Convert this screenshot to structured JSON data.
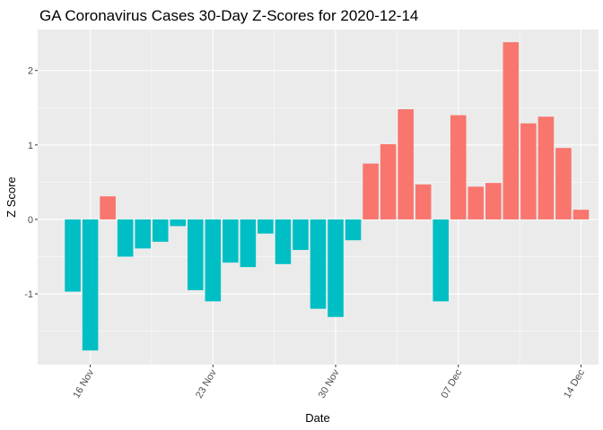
{
  "chart_data": {
    "type": "bar",
    "title": "GA Coronavirus Cases 30-Day Z-Scores for 2020-12-14",
    "xlabel": "Date",
    "ylabel": "Z Score",
    "x": [
      "2020-11-15",
      "2020-11-16",
      "2020-11-17",
      "2020-11-18",
      "2020-11-19",
      "2020-11-20",
      "2020-11-21",
      "2020-11-22",
      "2020-11-23",
      "2020-11-24",
      "2020-11-25",
      "2020-11-26",
      "2020-11-27",
      "2020-11-28",
      "2020-11-29",
      "2020-11-30",
      "2020-12-01",
      "2020-12-02",
      "2020-12-03",
      "2020-12-04",
      "2020-12-05",
      "2020-12-06",
      "2020-12-07",
      "2020-12-08",
      "2020-12-09",
      "2020-12-10",
      "2020-12-11",
      "2020-12-12",
      "2020-12-13",
      "2020-12-14"
    ],
    "values": [
      -0.97,
      -1.76,
      0.31,
      -0.5,
      -0.39,
      -0.3,
      -0.09,
      -0.95,
      -1.1,
      -0.58,
      -0.64,
      -0.19,
      -0.6,
      -0.41,
      -1.2,
      -1.31,
      -0.28,
      0.75,
      1.01,
      1.48,
      0.47,
      -1.1,
      1.4,
      0.44,
      0.49,
      2.38,
      1.29,
      1.38,
      0.96,
      0.13
    ],
    "positive_color": "#F8766D",
    "negative_color": "#00BFC4",
    "panel_background": "#EBEBEB",
    "grid": true,
    "legend": "none",
    "ylim": [
      -1.95,
      2.55
    ],
    "xlim": [
      "2020-11-13",
      "2020-12-15"
    ],
    "y_ticks": [
      -1,
      0,
      1,
      2
    ],
    "y_tick_labels": [
      "-1",
      "0",
      "1",
      "2"
    ],
    "x_ticks": [
      "2020-11-16",
      "2020-11-23",
      "2020-11-30",
      "2020-12-07",
      "2020-12-14"
    ],
    "x_tick_labels": [
      "16 Nov",
      "23 Nov",
      "30 Nov",
      "07 Dec",
      "14 Dec"
    ]
  }
}
